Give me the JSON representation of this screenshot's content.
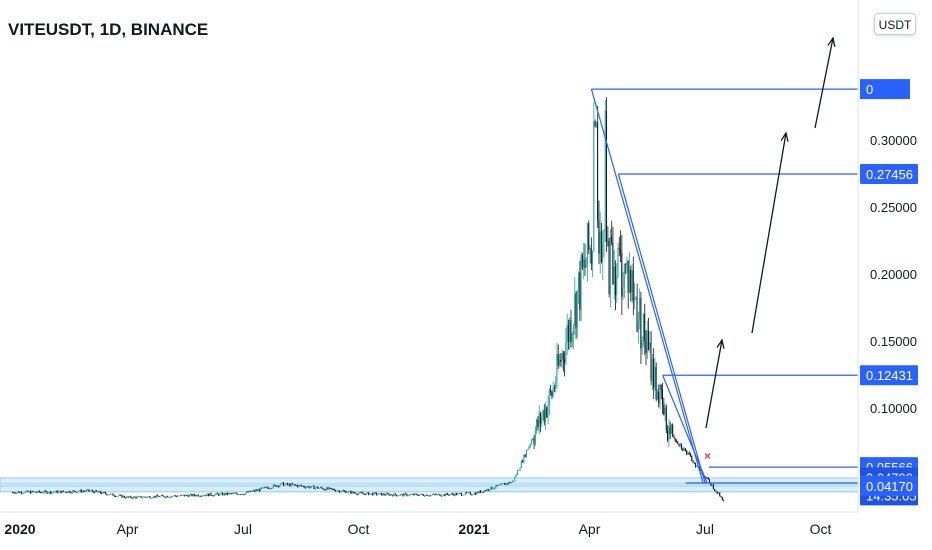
{
  "header": {
    "title": "VITEUSDT, 1D, BINANCE",
    "currency_button": "USDT"
  },
  "colors": {
    "up": "#26a69a",
    "down": "#131722",
    "price_line": "#1e53e5",
    "drawing": "#2962ff",
    "label_bg": "#2962ff",
    "zone_fill": "#bbdefb",
    "grid_text": "#131722"
  },
  "chart_data": {
    "type": "candlestick",
    "title": "VITEUSDT, 1D, BINANCE",
    "y_axis": {
      "ticks": [
        "0.30000",
        "0.25000",
        "0.20000",
        "0.15000",
        "0.10000"
      ],
      "tick_values": [
        0.3,
        0.25,
        0.2,
        0.15,
        0.1
      ],
      "range": [
        0.03,
        0.35
      ]
    },
    "x_axis": {
      "ticks": [
        "2020",
        "Apr",
        "Jul",
        "Oct",
        "2021",
        "Apr",
        "Jul",
        "Oct"
      ],
      "bold": [
        true,
        false,
        false,
        false,
        true,
        false,
        false,
        false
      ]
    },
    "price_labels": [
      {
        "text": "0.27456",
        "value": 0.27456
      },
      {
        "text": "0.12431",
        "value": 0.12431
      },
      {
        "text": "0.05566",
        "value": 0.05566
      },
      {
        "text": "0.04799",
        "value": 0.04799,
        "countdown": "14:35:05"
      },
      {
        "text": "0.04170",
        "value": 0.0417
      }
    ],
    "top_label_partial": "0",
    "target_levels": [
      0.338,
      0.27456,
      0.12431,
      0.05566
    ],
    "support_zones": [
      {
        "from": 0.0405,
        "to": 0.0417
      },
      {
        "from": 0.0438,
        "to": 0.0476
      }
    ],
    "price_path": [
      [
        "2020-01",
        0.037
      ],
      [
        "2020-02",
        0.037
      ],
      [
        "2020-03",
        0.038
      ],
      [
        "2020-04",
        0.033
      ],
      [
        "2020-05",
        0.034
      ],
      [
        "2020-06",
        0.035
      ],
      [
        "2020-07",
        0.036
      ],
      [
        "2020-08",
        0.043
      ],
      [
        "2020-09",
        0.04
      ],
      [
        "2020-10",
        0.036
      ],
      [
        "2020-11",
        0.035
      ],
      [
        "2020-12",
        0.035
      ],
      [
        "2021-01",
        0.036
      ],
      [
        "2021-02",
        0.045
      ],
      [
        "2021-03",
        0.11
      ],
      [
        "2021-04",
        0.22
      ],
      [
        "2021-05",
        0.2
      ],
      [
        "2021-06",
        0.085
      ],
      [
        "2021-07",
        0.048
      ]
    ]
  }
}
